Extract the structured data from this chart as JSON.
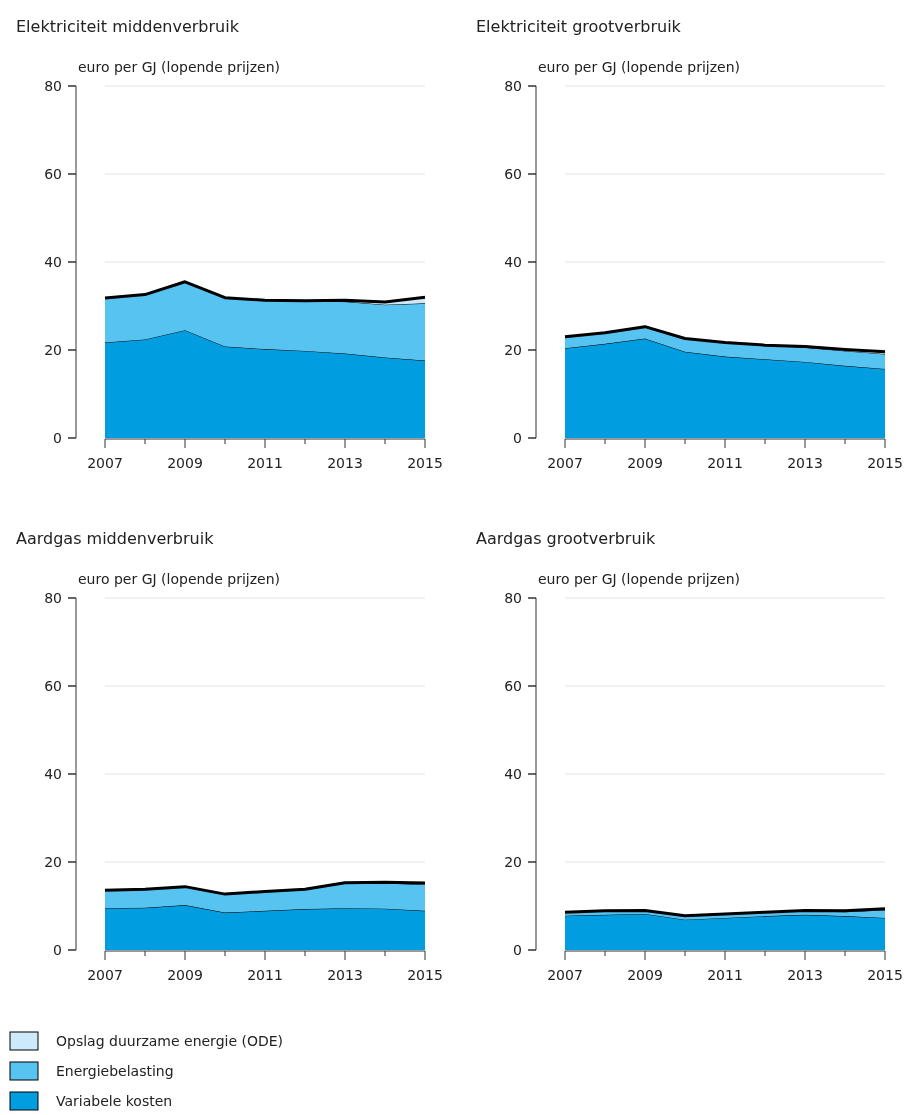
{
  "chart_data": [
    {
      "type": "area",
      "stacked": true,
      "title": "Elektriciteit middenverbruik",
      "ylabel": "euro per GJ (lopende prijzen)",
      "x": [
        2007,
        2008,
        2009,
        2010,
        2011,
        2012,
        2013,
        2014,
        2015
      ],
      "xlim": [
        2007,
        2015
      ],
      "xticks": [
        2007,
        {
          "value": 2008,
          "label": null
        },
        2009,
        {
          "value": 2010,
          "label": null
        },
        2011,
        {
          "value": 2012,
          "label": null
        },
        2013,
        {
          "value": 2014,
          "label": null
        },
        2015
      ],
      "ylim": [
        0,
        80
      ],
      "yticks": [
        0,
        20,
        40,
        60,
        80
      ],
      "grid": "y",
      "legend": "bottom",
      "series": [
        {
          "name": "Variabele kosten",
          "color": "#009ee0",
          "values": [
            21.7,
            22.4,
            24.5,
            20.8,
            20.2,
            19.8,
            19.2,
            18.3,
            17.6
          ]
        },
        {
          "name": "Energiebelasting",
          "color": "#57c3f0",
          "values": [
            10.1,
            10.2,
            11.0,
            11.1,
            11.1,
            11.4,
            11.8,
            12.0,
            13.0
          ]
        },
        {
          "name": "Opslag duurzame energie (ODE)",
          "color": "#cdeafa",
          "values": [
            0,
            0,
            0,
            0,
            0,
            0,
            0.3,
            0.6,
            1.4
          ]
        }
      ]
    },
    {
      "type": "area",
      "stacked": true,
      "title": "Elektriciteit grootverbruik",
      "ylabel": "euro per GJ (lopende prijzen)",
      "x": [
        2007,
        2008,
        2009,
        2010,
        2011,
        2012,
        2013,
        2014,
        2015
      ],
      "xlim": [
        2007,
        2015
      ],
      "xticks": [
        2007,
        {
          "value": 2008,
          "label": null
        },
        2009,
        {
          "value": 2010,
          "label": null
        },
        2011,
        {
          "value": 2012,
          "label": null
        },
        2013,
        {
          "value": 2014,
          "label": null
        },
        2015
      ],
      "ylim": [
        0,
        80
      ],
      "yticks": [
        0,
        20,
        40,
        60,
        80
      ],
      "grid": "y",
      "series": [
        {
          "color": "#009ee0",
          "values": [
            20.4,
            21.4,
            22.6,
            19.6,
            18.5,
            17.9,
            17.3,
            16.4,
            15.7
          ]
        },
        {
          "color": "#57c3f0",
          "values": [
            2.6,
            2.5,
            2.7,
            3.0,
            3.2,
            3.2,
            3.3,
            3.4,
            3.4
          ]
        },
        {
          "color": "#cdeafa",
          "values": [
            0,
            0,
            0,
            0,
            0,
            0,
            0.2,
            0.3,
            0.5
          ]
        }
      ]
    },
    {
      "type": "area",
      "stacked": true,
      "title": "Aardgas middenverbruik",
      "ylabel": "euro per GJ (lopende prijzen)",
      "x": [
        2007,
        2008,
        2009,
        2010,
        2011,
        2012,
        2013,
        2014,
        2015
      ],
      "xlim": [
        2007,
        2015
      ],
      "xticks": [
        2007,
        {
          "value": 2008,
          "label": null
        },
        2009,
        {
          "value": 2010,
          "label": null
        },
        2011,
        {
          "value": 2012,
          "label": null
        },
        2013,
        {
          "value": 2014,
          "label": null
        },
        2015
      ],
      "ylim": [
        0,
        80
      ],
      "yticks": [
        0,
        20,
        40,
        60,
        80
      ],
      "grid": "y",
      "series": [
        {
          "color": "#009ee0",
          "values": [
            9.5,
            9.6,
            10.2,
            8.5,
            8.9,
            9.3,
            9.5,
            9.4,
            8.9
          ]
        },
        {
          "color": "#57c3f0",
          "values": [
            4.1,
            4.2,
            4.2,
            4.2,
            4.4,
            4.5,
            5.7,
            5.8,
            6.0
          ]
        },
        {
          "color": "#cdeafa",
          "values": [
            0,
            0,
            0,
            0,
            0,
            0,
            0.1,
            0.2,
            0.3
          ]
        }
      ]
    },
    {
      "type": "area",
      "stacked": true,
      "title": "Aardgas grootverbruik",
      "ylabel": "euro per GJ (lopende prijzen)",
      "x": [
        2007,
        2008,
        2009,
        2010,
        2011,
        2012,
        2013,
        2014,
        2015
      ],
      "xlim": [
        2007,
        2015
      ],
      "xticks": [
        2007,
        {
          "value": 2008,
          "label": null
        },
        2009,
        {
          "value": 2010,
          "label": null
        },
        2011,
        {
          "value": 2012,
          "label": null
        },
        2013,
        {
          "value": 2014,
          "label": null
        },
        2015
      ],
      "ylim": [
        0,
        80
      ],
      "yticks": [
        0,
        20,
        40,
        60,
        80
      ],
      "grid": "y",
      "series": [
        {
          "color": "#009ee0",
          "values": [
            7.8,
            8.0,
            8.2,
            6.9,
            7.3,
            7.7,
            8.0,
            7.7,
            7.3
          ]
        },
        {
          "color": "#57c3f0",
          "values": [
            0.8,
            0.9,
            0.8,
            0.9,
            0.9,
            0.9,
            0.9,
            1.0,
            1.8
          ]
        },
        {
          "color": "#cdeafa",
          "values": [
            0,
            0,
            0,
            0,
            0,
            0,
            0.1,
            0.2,
            0.3
          ]
        }
      ]
    }
  ]
}
